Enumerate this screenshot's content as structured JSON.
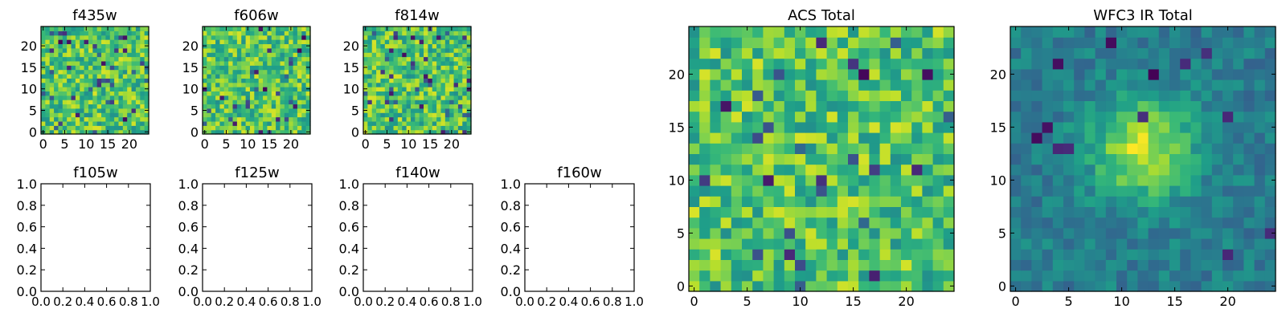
{
  "colormap": "viridis",
  "colors": {
    "axes": "#000000",
    "background": "#ffffff"
  },
  "chart_data": [
    {
      "id": "f435w",
      "type": "heatmap",
      "title": "f435w",
      "xlabel": "",
      "ylabel": "",
      "grid": false,
      "xlim": [
        -0.5,
        24.5
      ],
      "ylim": [
        -0.5,
        24.5
      ],
      "shape": [
        25,
        25
      ],
      "xticks": [
        "0",
        "5",
        "10",
        "15",
        "20"
      ],
      "yticks": [
        "0",
        "5",
        "10",
        "15",
        "20"
      ],
      "values_description": "25x25 noise image, values mostly in upper colormap range"
    },
    {
      "id": "f606w",
      "type": "heatmap",
      "title": "f606w",
      "xlabel": "",
      "ylabel": "",
      "grid": false,
      "xlim": [
        -0.5,
        24.5
      ],
      "ylim": [
        -0.5,
        24.5
      ],
      "shape": [
        25,
        25
      ],
      "xticks": [
        "0",
        "5",
        "10",
        "15",
        "20"
      ],
      "yticks": [
        "0",
        "5",
        "10",
        "15",
        "20"
      ]
    },
    {
      "id": "f814w",
      "type": "heatmap",
      "title": "f814w",
      "xlabel": "",
      "ylabel": "",
      "grid": false,
      "xlim": [
        -0.5,
        24.5
      ],
      "ylim": [
        -0.5,
        24.5
      ],
      "shape": [
        25,
        25
      ],
      "xticks": [
        "0",
        "5",
        "10",
        "15",
        "20"
      ],
      "yticks": [
        "0",
        "5",
        "10",
        "15",
        "20"
      ]
    },
    {
      "id": "f105w",
      "type": "empty",
      "title": "f105w",
      "xlim": [
        0,
        1
      ],
      "ylim": [
        0,
        1
      ],
      "xticks": [
        "0.0",
        "0.2",
        "0.4",
        "0.6",
        "0.8",
        "1.0"
      ],
      "yticks": [
        "0.0",
        "0.2",
        "0.4",
        "0.6",
        "0.8",
        "1.0"
      ]
    },
    {
      "id": "f125w",
      "type": "empty",
      "title": "f125w",
      "xlim": [
        0,
        1
      ],
      "ylim": [
        0,
        1
      ],
      "xticks": [
        "0.0",
        "0.2",
        "0.4",
        "0.6",
        "0.8",
        "1.0"
      ],
      "yticks": [
        "0.0",
        "0.2",
        "0.4",
        "0.6",
        "0.8",
        "1.0"
      ]
    },
    {
      "id": "f140w",
      "type": "empty",
      "title": "f140w",
      "xlim": [
        0,
        1
      ],
      "ylim": [
        0,
        1
      ],
      "xticks": [
        "0.0",
        "0.2",
        "0.4",
        "0.6",
        "0.8",
        "1.0"
      ],
      "yticks": [
        "0.0",
        "0.2",
        "0.4",
        "0.6",
        "0.8",
        "1.0"
      ]
    },
    {
      "id": "f160w",
      "type": "empty",
      "title": "f160w",
      "xlim": [
        0,
        1
      ],
      "ylim": [
        0,
        1
      ],
      "xticks": [
        "0.0",
        "0.2",
        "0.4",
        "0.6",
        "0.8",
        "1.0"
      ],
      "yticks": [
        "0.0",
        "0.2",
        "0.4",
        "0.6",
        "0.8",
        "1.0"
      ]
    },
    {
      "id": "acs_total",
      "type": "heatmap",
      "title": "ACS Total",
      "grid": false,
      "xlim": [
        -0.5,
        24.5
      ],
      "ylim": [
        -0.5,
        24.5
      ],
      "shape": [
        25,
        25
      ],
      "xticks": [
        "0",
        "5",
        "10",
        "15",
        "20"
      ],
      "yticks": [
        "0",
        "5",
        "10",
        "15",
        "20"
      ]
    },
    {
      "id": "wfc3_ir_total",
      "type": "heatmap",
      "title": "WFC3 IR Total",
      "grid": false,
      "xlim": [
        -0.5,
        24.5
      ],
      "ylim": [
        -0.5,
        24.5
      ],
      "shape": [
        25,
        25
      ],
      "xticks": [
        "0",
        "5",
        "10",
        "15",
        "20"
      ],
      "yticks": [
        "0",
        "5",
        "10",
        "15",
        "20"
      ],
      "feature": "bright central source near (12, 13)"
    }
  ]
}
